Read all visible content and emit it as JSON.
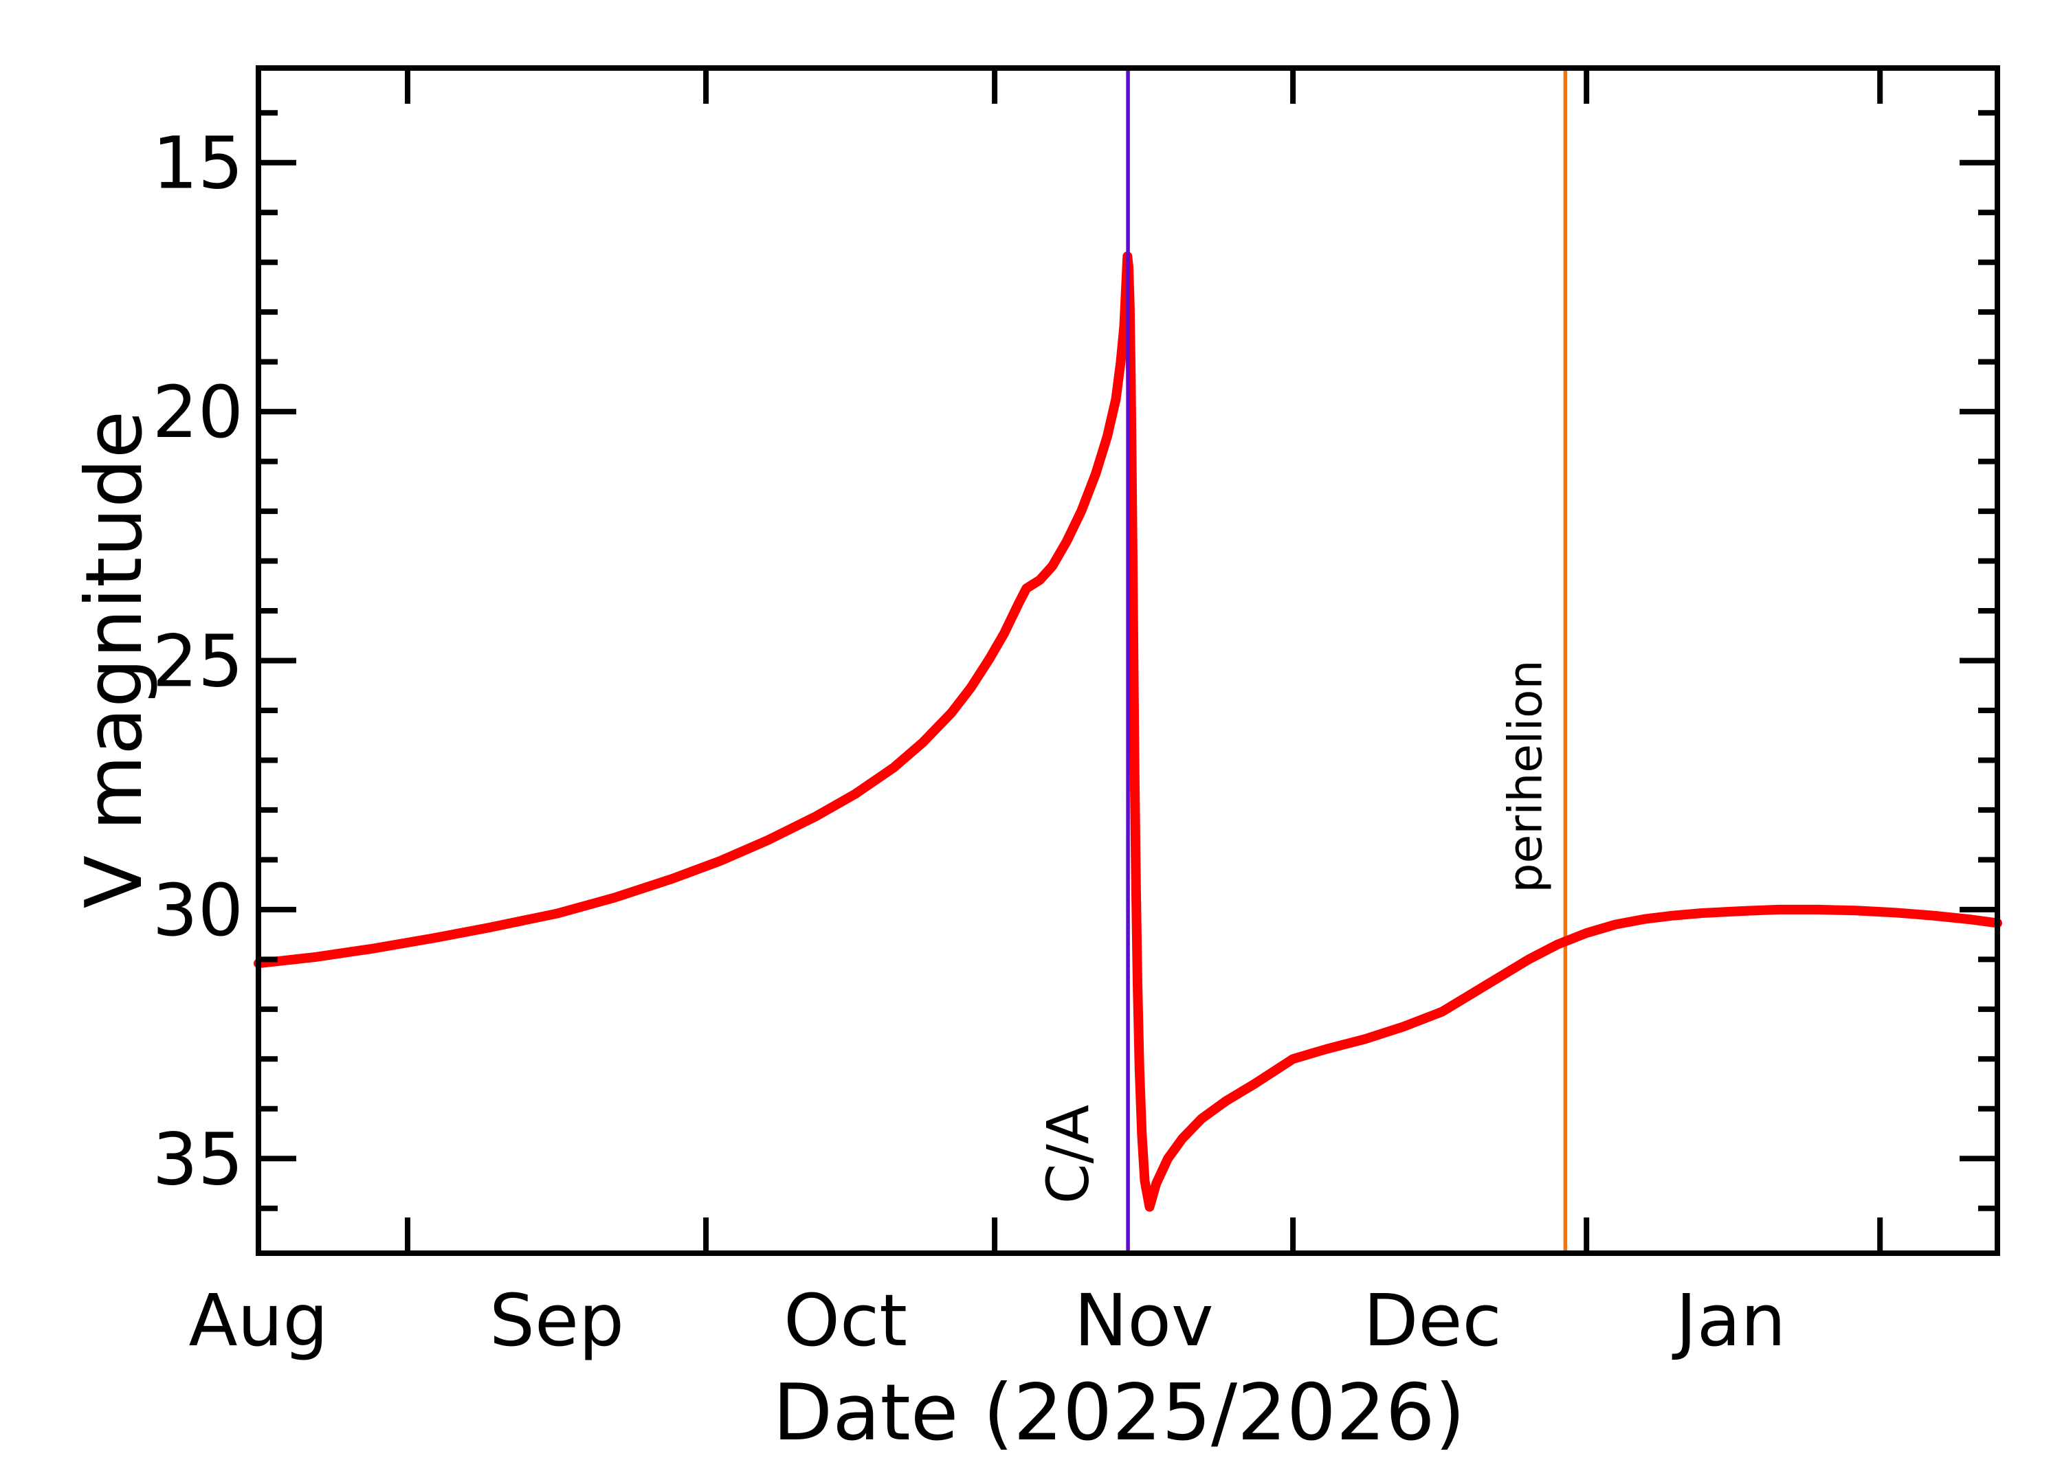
{
  "chart_data": {
    "type": "line",
    "title": "",
    "xlabel": "Date (2025/2026)",
    "ylabel": "V magnitude",
    "grid": false,
    "legend": null,
    "x_axis": {
      "kind": "date",
      "start_date": "2025-08-01",
      "range_days": [
        0,
        180.7
      ],
      "months": [
        {
          "label": "Aug",
          "day": 0
        },
        {
          "label": "Sep",
          "day": 31
        },
        {
          "label": "Oct",
          "day": 61
        },
        {
          "label": "Nov",
          "day": 92
        },
        {
          "label": "Dec",
          "day": 122
        },
        {
          "label": "Jan",
          "day": 153
        }
      ],
      "mid_month_tick_days": [
        15.5,
        46.5,
        76.5,
        107.5,
        138.0,
        168.5
      ]
    },
    "y_axis": {
      "label": "V magnitude",
      "inverted": true,
      "range": [
        13.1,
        36.9
      ],
      "major_ticks": [
        15,
        20,
        25,
        30,
        35
      ],
      "minor_tick_step": 1
    },
    "annotations": [
      {
        "id": "close-approach",
        "text": "C/A",
        "day": 90.36,
        "approx_date": "Oct 30",
        "color": "#5A0CD0"
      },
      {
        "id": "perihelion",
        "text": "perihelion",
        "day": 135.8,
        "approx_date": "Dec 15",
        "color": "#F87408"
      }
    ],
    "series": [
      {
        "name": "V magnitude",
        "color": "#FF0000",
        "points": [
          [
            0,
            31.08
          ],
          [
            6,
            30.95
          ],
          [
            12,
            30.78
          ],
          [
            18,
            30.58
          ],
          [
            24,
            30.36
          ],
          [
            31,
            30.08
          ],
          [
            37,
            29.76
          ],
          [
            43,
            29.38
          ],
          [
            48,
            29.02
          ],
          [
            53,
            28.6
          ],
          [
            58,
            28.12
          ],
          [
            62,
            27.68
          ],
          [
            66,
            27.15
          ],
          [
            69,
            26.65
          ],
          [
            72,
            26.05
          ],
          [
            74,
            25.55
          ],
          [
            76,
            24.95
          ],
          [
            77.5,
            24.45
          ],
          [
            79,
            23.85
          ],
          [
            79.8,
            23.55
          ],
          [
            81.2,
            23.38
          ],
          [
            82.5,
            23.1
          ],
          [
            84,
            22.6
          ],
          [
            85.5,
            22.0
          ],
          [
            87,
            21.25
          ],
          [
            88.2,
            20.5
          ],
          [
            89.1,
            19.75
          ],
          [
            89.6,
            19.0
          ],
          [
            89.95,
            18.3
          ],
          [
            90.15,
            17.5
          ],
          [
            90.3,
            16.88
          ],
          [
            90.42,
            17.1
          ],
          [
            90.55,
            17.9
          ],
          [
            90.65,
            19.2
          ],
          [
            90.75,
            21.0
          ],
          [
            90.85,
            23.0
          ],
          [
            90.95,
            25.2
          ],
          [
            91.05,
            27.3
          ],
          [
            91.2,
            29.6
          ],
          [
            91.35,
            31.5
          ],
          [
            91.55,
            33.2
          ],
          [
            91.8,
            34.5
          ],
          [
            92.1,
            35.45
          ],
          [
            92.6,
            35.97
          ],
          [
            93.3,
            35.5
          ],
          [
            94.5,
            35.0
          ],
          [
            96,
            34.6
          ],
          [
            98,
            34.2
          ],
          [
            100.5,
            33.85
          ],
          [
            103.5,
            33.5
          ],
          [
            105.5,
            33.25
          ],
          [
            107.5,
            33.0
          ],
          [
            111,
            32.8
          ],
          [
            115,
            32.6
          ],
          [
            119,
            32.35
          ],
          [
            123,
            32.05
          ],
          [
            126,
            31.7
          ],
          [
            129,
            31.35
          ],
          [
            132,
            31.0
          ],
          [
            135,
            30.7
          ],
          [
            138,
            30.47
          ],
          [
            141,
            30.3
          ],
          [
            144,
            30.19
          ],
          [
            147,
            30.12
          ],
          [
            150,
            30.07
          ],
          [
            154,
            30.03
          ],
          [
            158,
            30.0
          ],
          [
            162,
            30.0
          ],
          [
            166,
            30.02
          ],
          [
            170,
            30.06
          ],
          [
            174,
            30.12
          ],
          [
            178,
            30.2
          ],
          [
            180.7,
            30.27
          ]
        ]
      }
    ]
  }
}
